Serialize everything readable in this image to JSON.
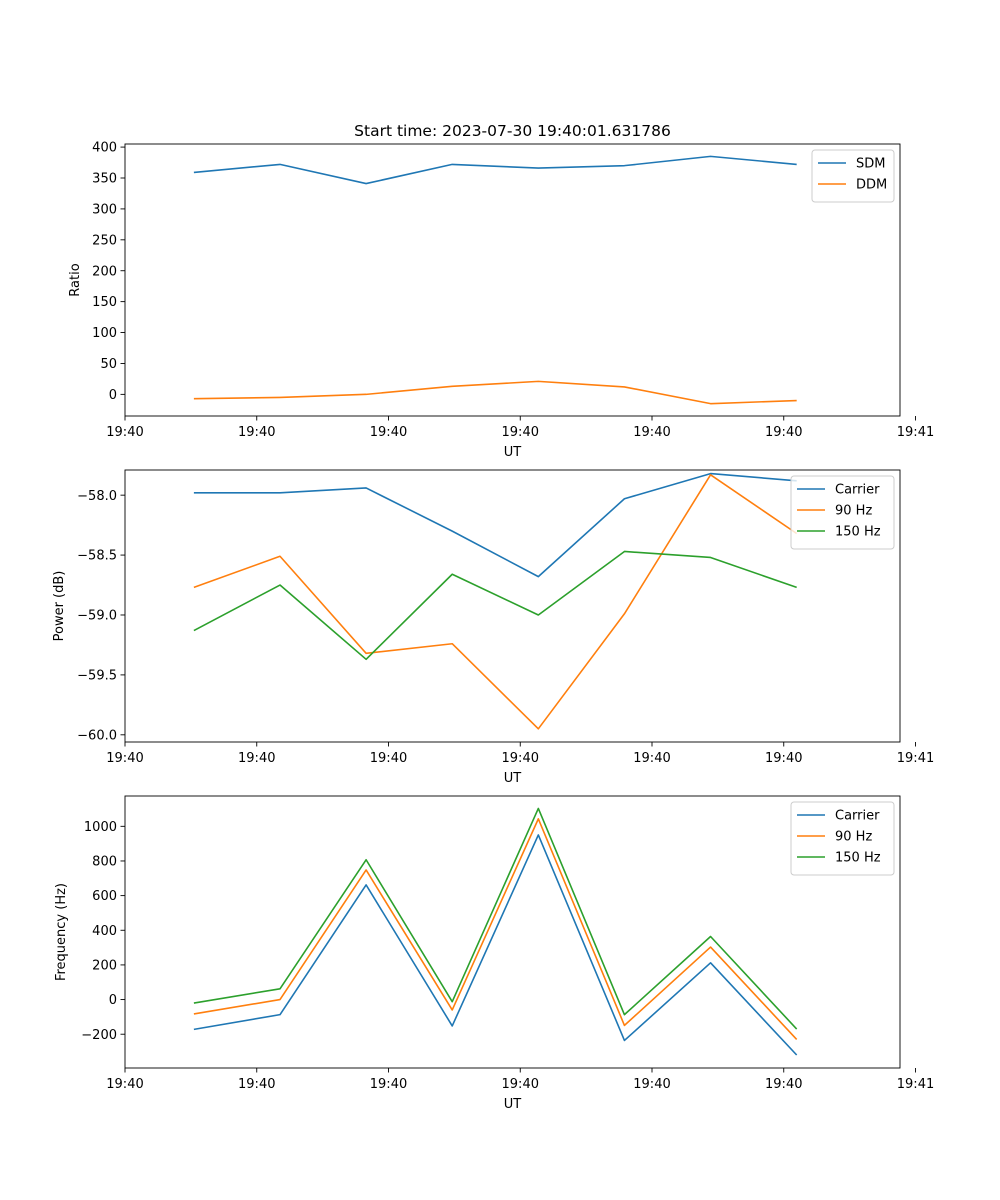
{
  "title": "Start time: 2023-07-30 19:40:01.631786",
  "colors": {
    "c0": "#1f77b4",
    "c1": "#ff7f0e",
    "c2": "#2ca02c"
  },
  "chart_data": [
    {
      "type": "line",
      "title": "Start time: 2023-07-30 19:40:01.631786",
      "xlabel": "UT",
      "ylabel": "Ratio",
      "x": [
        1,
        2,
        3,
        4,
        5,
        6,
        7,
        8
      ],
      "xlim": [
        0.2,
        9.2
      ],
      "xticks": [
        0.2,
        1.73,
        3.26,
        4.79,
        6.32,
        7.85,
        9.38
      ],
      "xtick_labels": [
        "19:40",
        "19:40",
        "19:40",
        "19:40",
        "19:40",
        "19:40",
        "19:41"
      ],
      "ylim": [
        -35,
        405
      ],
      "yticks": [
        0,
        50,
        100,
        150,
        200,
        250,
        300,
        350,
        400
      ],
      "ytick_labels": [
        "0",
        "50",
        "100",
        "150",
        "200",
        "250",
        "300",
        "350",
        "400"
      ],
      "legend": "top-right",
      "series": [
        {
          "name": "SDM",
          "color": "#1f77b4",
          "values": [
            359,
            372,
            341,
            372,
            366,
            370,
            385,
            372
          ]
        },
        {
          "name": "DDM",
          "color": "#ff7f0e",
          "values": [
            -7,
            -5,
            0,
            13,
            21,
            12,
            -15,
            -10
          ]
        }
      ]
    },
    {
      "type": "line",
      "title": "",
      "xlabel": "UT",
      "ylabel": "Power (dB)",
      "x": [
        1,
        2,
        3,
        4,
        5,
        6,
        7,
        8
      ],
      "xlim": [
        0.2,
        9.2
      ],
      "xticks": [
        0.2,
        1.73,
        3.26,
        4.79,
        6.32,
        7.85,
        9.38
      ],
      "xtick_labels": [
        "19:40",
        "19:40",
        "19:40",
        "19:40",
        "19:40",
        "19:40",
        "19:41"
      ],
      "ylim": [
        -60.06,
        -57.79
      ],
      "yticks": [
        -60.0,
        -59.5,
        -59.0,
        -58.5,
        -58.0
      ],
      "ytick_labels": [
        "−60.0",
        "−59.5",
        "−59.0",
        "−58.5",
        "−58.0"
      ],
      "legend": "top-right",
      "series": [
        {
          "name": "Carrier",
          "color": "#1f77b4",
          "values": [
            -57.98,
            -57.98,
            -57.94,
            -58.3,
            -58.68,
            -58.03,
            -57.82,
            -57.88
          ]
        },
        {
          "name": "90 Hz",
          "color": "#ff7f0e",
          "values": [
            -58.77,
            -58.51,
            -59.32,
            -59.24,
            -59.95,
            -58.99,
            -57.83,
            -58.32
          ]
        },
        {
          "name": "150 Hz",
          "color": "#2ca02c",
          "values": [
            -59.13,
            -58.75,
            -59.37,
            -58.66,
            -59.0,
            -58.47,
            -58.52,
            -58.77
          ]
        }
      ]
    },
    {
      "type": "line",
      "title": "",
      "xlabel": "UT",
      "ylabel": "Frequency (Hz)",
      "x": [
        1,
        2,
        3,
        4,
        5,
        6,
        7,
        8
      ],
      "xlim": [
        0.2,
        9.2
      ],
      "xticks": [
        0.2,
        1.73,
        3.26,
        4.79,
        6.32,
        7.85,
        9.38
      ],
      "xtick_labels": [
        "19:40",
        "19:40",
        "19:40",
        "19:40",
        "19:40",
        "19:40",
        "19:41"
      ],
      "ylim": [
        -395,
        1175
      ],
      "yticks": [
        -200,
        0,
        200,
        400,
        600,
        800,
        1000
      ],
      "ytick_labels": [
        "−200",
        "0",
        "200",
        "400",
        "600",
        "800",
        "1000"
      ],
      "legend": "top-right",
      "series": [
        {
          "name": "Carrier",
          "color": "#1f77b4",
          "values": [
            -172,
            -87,
            662,
            -152,
            950,
            -236,
            212,
            -320
          ]
        },
        {
          "name": "90 Hz",
          "color": "#ff7f0e",
          "values": [
            -83,
            0,
            748,
            -60,
            1043,
            -149,
            303,
            -230
          ]
        },
        {
          "name": "150 Hz",
          "color": "#2ca02c",
          "values": [
            -20,
            62,
            807,
            -12,
            1103,
            -87,
            364,
            -170
          ]
        }
      ]
    }
  ]
}
